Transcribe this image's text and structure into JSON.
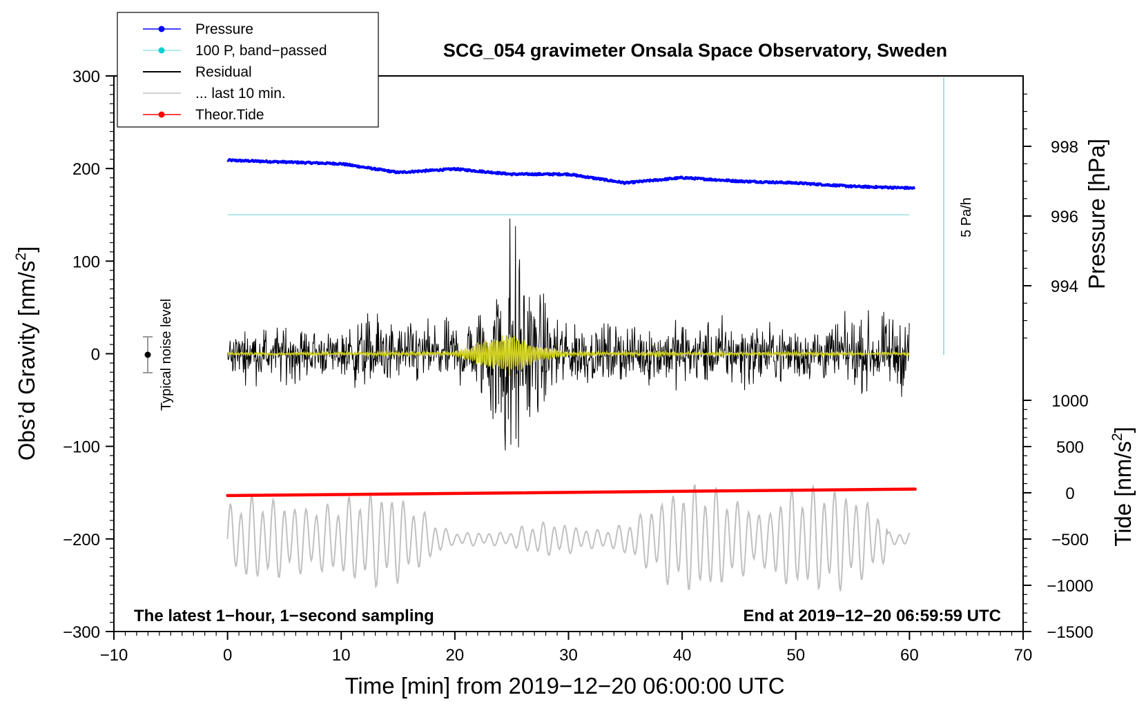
{
  "chart_data": {
    "type": "line",
    "title": "SCG_054 gravimeter Onsala Space Observatory, Sweden",
    "xlabel": "Time [min] from 2019−12−20 06:00:00 UTC",
    "ylabel_left_main": "Obs’d Gravity [nm/s",
    "ylabel_left_sup": "2",
    "ylabel_left_tail": "]",
    "ylabel_right_top": "Pressure [hPa]",
    "ylabel_right_bottom_main": "Tide [nm/s",
    "ylabel_right_bottom_sup": "2",
    "ylabel_right_bottom_tail": "]",
    "xlim": [
      -10,
      70
    ],
    "ylim": [
      -300,
      300
    ],
    "x_ticks": [
      "−10",
      "0",
      "10",
      "20",
      "30",
      "40",
      "50",
      "60",
      "70"
    ],
    "y_ticks": [
      "−300",
      "−200",
      "−100",
      "0",
      "100",
      "200",
      "300"
    ],
    "pressure_ticks": [
      "998",
      "996",
      "994"
    ],
    "tide_ticks": [
      "1000",
      "500",
      "0",
      "−500",
      "−1000",
      "−1500"
    ],
    "annotation_left": "The latest 1−hour, 1−second sampling",
    "annotation_right": "End at 2019−12−20 06:59:59 UTC",
    "noise_label": "Typical noise level",
    "scale_bar_label": "5 Pa/h",
    "legend": [
      {
        "name": "Pressure",
        "color": "#0000ff",
        "marker": true
      },
      {
        "name": "100 P, band−passed",
        "color": "#00d0d0",
        "marker": true
      },
      {
        "name": "Residual",
        "color": "#000000",
        "marker": false
      },
      {
        "name": "... last 10 min.",
        "color": "#c0c0c0",
        "marker": false
      },
      {
        "name": "Theor.Tide",
        "color": "#ff0000",
        "marker": true
      }
    ],
    "series": [
      {
        "name": "Pressure",
        "unit": "hPa",
        "color": "#0000ff",
        "x": [
          0,
          5,
          10,
          15,
          20,
          25,
          30,
          35,
          40,
          45,
          50,
          55,
          60.5
        ],
        "values": [
          997.6,
          997.55,
          997.5,
          997.25,
          997.35,
          997.2,
          997.2,
          996.95,
          997.1,
          997.0,
          996.95,
          996.85,
          996.8
        ]
      },
      {
        "name": "100 P, band−passed",
        "unit": "nm/s2",
        "color": "#a0e0e0",
        "x": [
          0,
          60
        ],
        "values": [
          150,
          150
        ]
      },
      {
        "name": "Residual",
        "unit": "nm/s2",
        "color": "#000000",
        "x": [
          0,
          5,
          10,
          12.5,
          15,
          20,
          22,
          24,
          25,
          26,
          28,
          30,
          35,
          40,
          45,
          50,
          55,
          60
        ],
        "values": [
          20,
          25,
          20,
          40,
          25,
          30,
          40,
          90,
          130,
          85,
          45,
          30,
          25,
          30,
          30,
          25,
          30,
          35
        ]
      },
      {
        "name": "Residual band−passed",
        "unit": "nm/s2",
        "color": "#d0d020",
        "x": [
          0,
          20,
          22.5,
          25,
          27,
          30,
          60
        ],
        "values": [
          1,
          2,
          15,
          25,
          10,
          2,
          1
        ]
      },
      {
        "name": "Theor.Tide",
        "unit": "nm/s2",
        "color": "#ff0000",
        "x": [
          0,
          60.5
        ],
        "values": [
          -30,
          40
        ]
      },
      {
        "name": "... last 10 min.",
        "unit": "nm/s2",
        "color": "#c0c0c0",
        "x": [
          0,
          60
        ],
        "values": [
          -200,
          -200
        ]
      }
    ]
  }
}
